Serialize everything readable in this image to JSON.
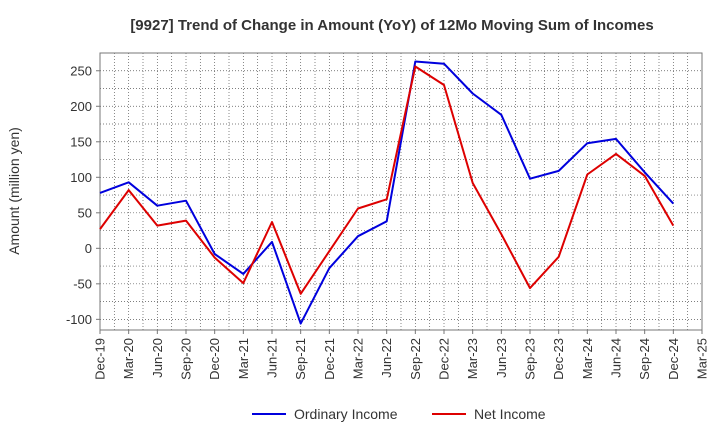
{
  "chart_data": {
    "type": "line",
    "title": "[9927]  Trend of Change in Amount (YoY) of 12Mo Moving Sum of Incomes",
    "xlabel": "",
    "ylabel": "Amount (million yen)",
    "ylim": [
      -115,
      275
    ],
    "yticks": [
      -100,
      -50,
      0,
      50,
      100,
      150,
      200,
      250
    ],
    "categories": [
      "Dec-19",
      "Mar-20",
      "Jun-20",
      "Sep-20",
      "Dec-20",
      "Mar-21",
      "Jun-21",
      "Sep-21",
      "Dec-21",
      "Mar-22",
      "Jun-22",
      "Sep-22",
      "Dec-22",
      "Mar-23",
      "Jun-23",
      "Sep-23",
      "Dec-23",
      "Mar-24",
      "Jun-24",
      "Sep-24",
      "Dec-24",
      "Mar-25"
    ],
    "grid": true,
    "legend_position": "bottom",
    "series": [
      {
        "name": "Ordinary Income",
        "color": "#0000dd",
        "values": [
          78,
          93,
          60,
          67,
          -8,
          -36,
          9,
          -106,
          -28,
          17,
          38,
          263,
          260,
          218,
          188,
          98,
          109,
          148,
          154,
          107,
          63,
          null
        ]
      },
      {
        "name": "Net Income",
        "color": "#dd0000",
        "values": [
          27,
          82,
          32,
          39,
          -13,
          -49,
          37,
          -64,
          -4,
          56,
          69,
          256,
          230,
          92,
          20,
          -56,
          -12,
          104,
          133,
          102,
          32,
          null
        ]
      }
    ]
  }
}
